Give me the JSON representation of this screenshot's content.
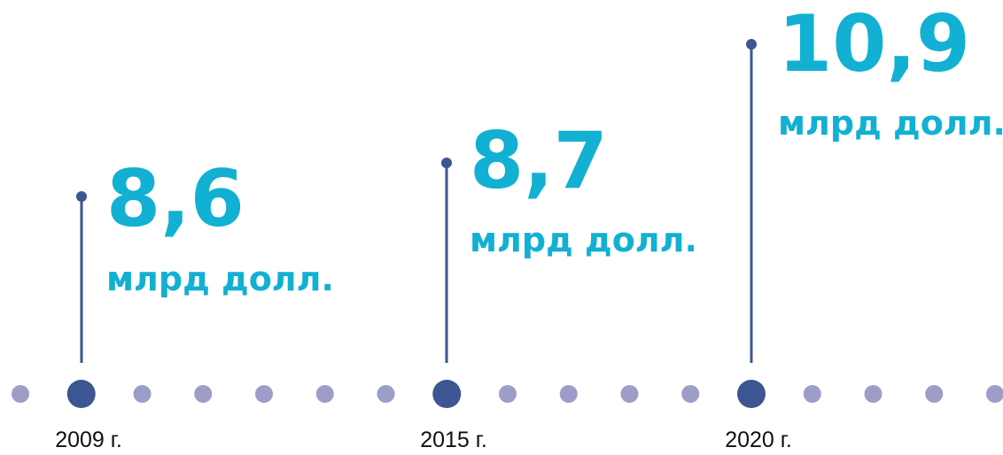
{
  "items": [
    {
      "value": "8,6",
      "unit": "млрд долл.",
      "year": "2009 г."
    },
    {
      "value": "8,7",
      "unit": "млрд долл.",
      "year": "2015 г."
    },
    {
      "value": "10,9",
      "unit": "млрд долл.",
      "year": "2020 г."
    }
  ]
}
